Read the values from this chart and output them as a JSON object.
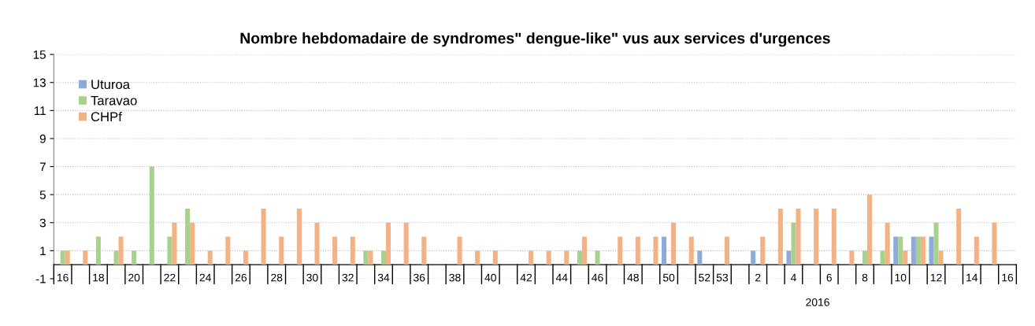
{
  "chart_data": {
    "type": "bar",
    "title": "Nombre hebdomadaire de syndromes\" dengue-like\" vus aux services d'urgences",
    "categories": [
      "16",
      null,
      "18",
      null,
      "20",
      null,
      "22",
      null,
      "24",
      null,
      "26",
      null,
      "28",
      null,
      "30",
      null,
      "32",
      null,
      "34",
      null,
      "36",
      null,
      "38",
      null,
      "40",
      null,
      "42",
      null,
      "44",
      null,
      "46",
      null,
      "48",
      null,
      "50",
      null,
      "52",
      "53",
      null,
      "2",
      null,
      "4",
      null,
      "6",
      null,
      "8",
      null,
      "10",
      null,
      "12",
      null,
      "14",
      null,
      "16"
    ],
    "series": [
      {
        "name": "Uturoa",
        "color": "#8eaadb",
        "values": [
          0,
          0,
          0,
          0,
          0,
          0,
          0,
          0,
          0,
          0,
          0,
          0,
          0,
          0,
          0,
          0,
          0,
          0,
          0,
          0,
          0,
          0,
          0,
          0,
          0,
          0,
          0,
          0,
          0,
          0,
          0,
          0,
          0,
          0,
          2,
          0,
          1,
          0,
          0,
          1,
          0,
          1,
          0,
          0,
          0,
          0,
          0,
          2,
          2,
          2,
          0,
          0,
          0,
          0
        ]
      },
      {
        "name": "Taravao",
        "color": "#a9d18e",
        "values": [
          1,
          0,
          2,
          1,
          1,
          7,
          2,
          4,
          0,
          0,
          0,
          0,
          0,
          0,
          0,
          0,
          0,
          1,
          1,
          0,
          0,
          0,
          0,
          0,
          0,
          0,
          0,
          0,
          0,
          1,
          1,
          0,
          0,
          0,
          0,
          0,
          0,
          0,
          0,
          0,
          0,
          3,
          0,
          0,
          0,
          1,
          1,
          2,
          2,
          3,
          0,
          0,
          0,
          0
        ]
      },
      {
        "name": "CHPf",
        "color": "#f4b183",
        "values": [
          1,
          1,
          0,
          2,
          0,
          0,
          3,
          3,
          1,
          2,
          1,
          4,
          2,
          4,
          3,
          2,
          2,
          1,
          3,
          3,
          2,
          0,
          2,
          1,
          1,
          0,
          1,
          1,
          1,
          2,
          0,
          2,
          2,
          2,
          3,
          2,
          0,
          2,
          0,
          2,
          4,
          4,
          4,
          4,
          1,
          5,
          3,
          1,
          2,
          1,
          4,
          2,
          3,
          0
        ]
      }
    ],
    "ylim": [
      -1,
      15
    ],
    "yticks": [
      -1,
      1,
      3,
      5,
      7,
      9,
      11,
      13,
      15
    ],
    "grid": "y",
    "legend": "top left",
    "annotations": [
      "2016"
    ]
  }
}
